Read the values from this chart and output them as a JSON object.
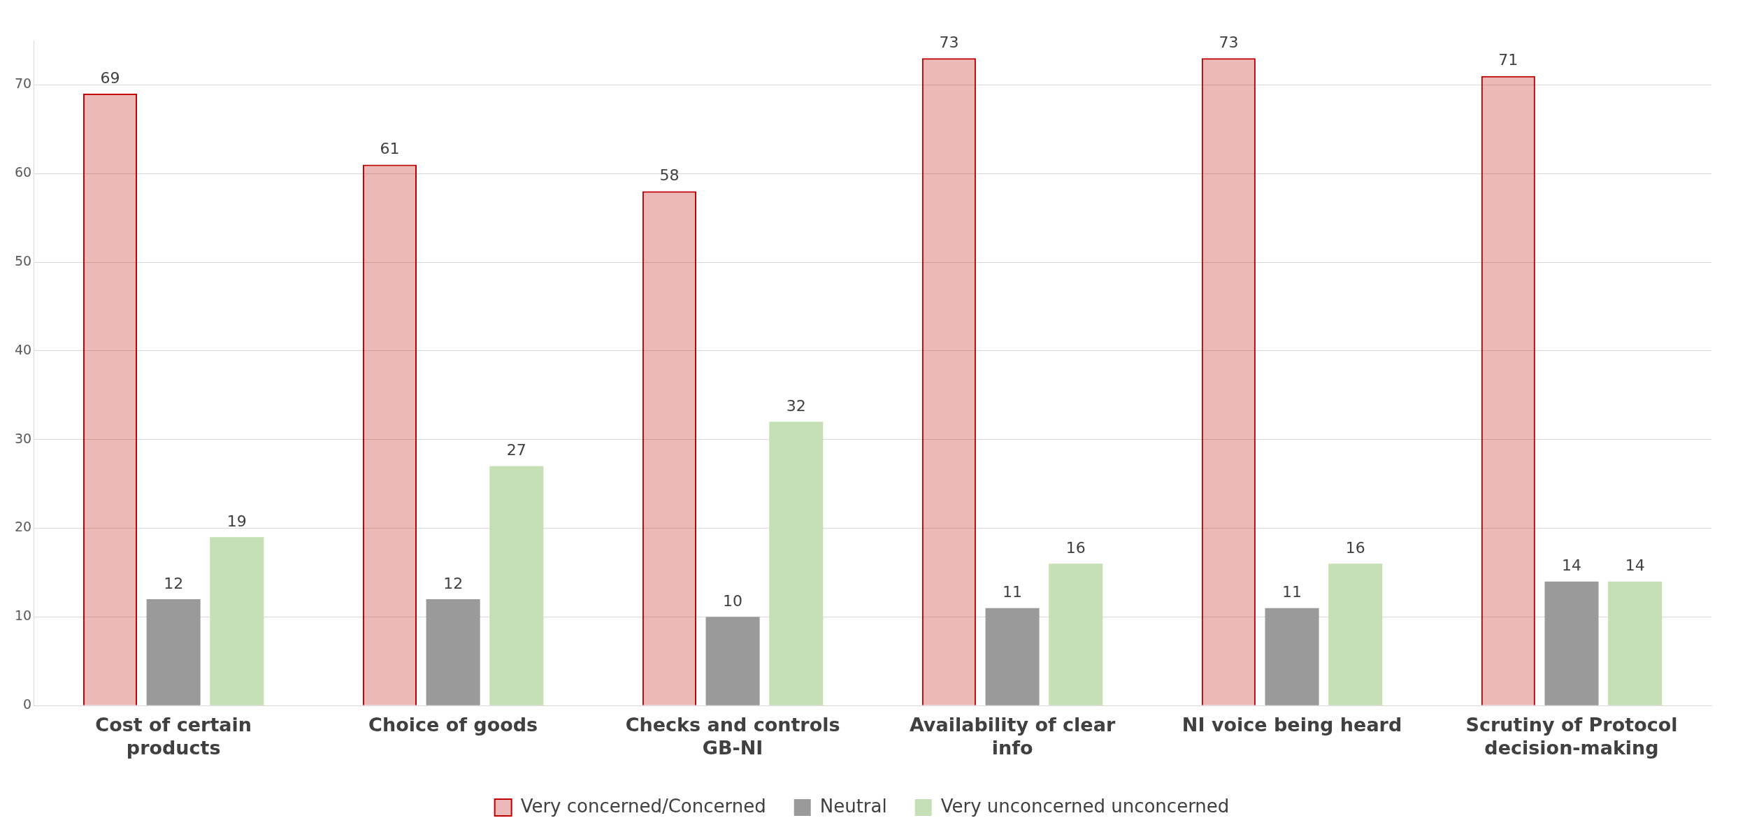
{
  "chart_data": {
    "type": "bar",
    "categories": [
      "Cost of certain products",
      "Choice of goods",
      "Checks and controls GB-NI",
      "Availability of clear info",
      "NI voice being heard",
      "Scrutiny of Protocol decision-making"
    ],
    "series": [
      {
        "name": "Very concerned/Concerned",
        "color": "#c00000",
        "values": [
          69,
          61,
          58,
          73,
          73,
          71
        ]
      },
      {
        "name": "Neutral",
        "color": "#9a9a9a",
        "values": [
          12,
          12,
          10,
          11,
          11,
          14
        ]
      },
      {
        "name": "Very unconcerned unconcerned",
        "color": "#c5e0b4",
        "values": [
          19,
          27,
          32,
          16,
          16,
          14
        ]
      }
    ],
    "ylim": [
      0,
      75
    ],
    "yticks": [
      0,
      10,
      20,
      30,
      40,
      50,
      60,
      70
    ],
    "grid": "y",
    "legend": "bottom",
    "data_labels": true
  }
}
